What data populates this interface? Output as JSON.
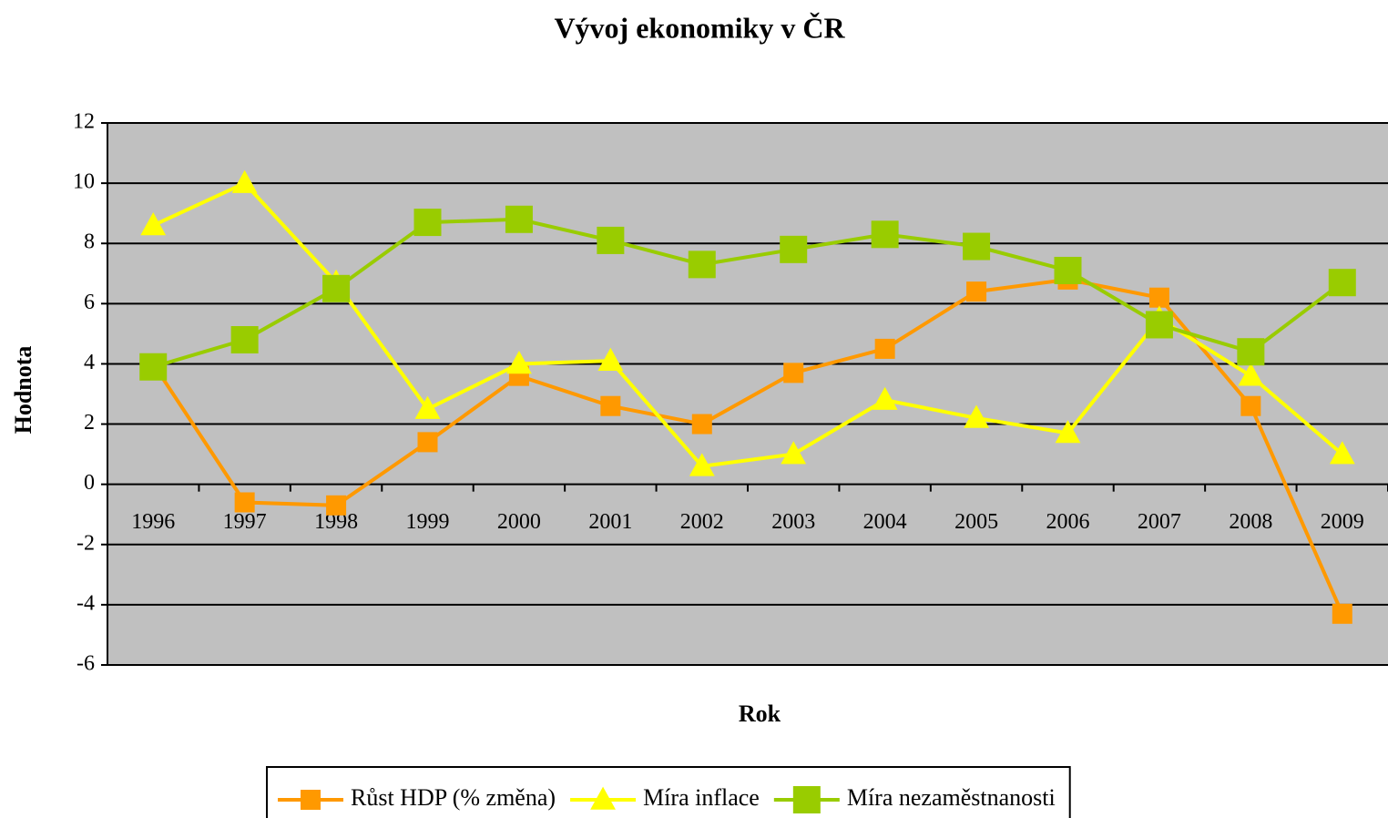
{
  "chart_data": {
    "type": "line",
    "title": "Vývoj ekonomiky v ČR",
    "xlabel": "Rok",
    "ylabel": "Hodnota",
    "categories": [
      "1996",
      "1997",
      "1998",
      "1999",
      "2000",
      "2001",
      "2002",
      "2003",
      "2004",
      "2005",
      "2006",
      "2007",
      "2008",
      "2009"
    ],
    "series": [
      {
        "name": "Růst HDP (% změna)",
        "color": "#ff9900",
        "marker": "square",
        "values": [
          4.0,
          -0.6,
          -0.7,
          1.4,
          3.6,
          2.6,
          2.0,
          3.7,
          4.5,
          6.4,
          6.8,
          6.2,
          2.6,
          -4.3
        ]
      },
      {
        "name": "Míra inflace",
        "color": "#ffff00",
        "marker": "triangle",
        "values": [
          8.6,
          10.0,
          6.7,
          2.5,
          4.0,
          4.1,
          0.6,
          1.0,
          2.8,
          2.2,
          1.7,
          5.5,
          3.6,
          1.0
        ]
      },
      {
        "name": "Míra nezaměstnanosti",
        "color": "#99cc00",
        "marker": "square",
        "values": [
          3.9,
          4.8,
          6.5,
          8.7,
          8.8,
          8.1,
          7.3,
          7.8,
          8.3,
          7.9,
          7.1,
          5.3,
          4.4,
          6.7
        ]
      }
    ],
    "ylim": [
      -6,
      12
    ],
    "yticks": [
      -6,
      -4,
      -2,
      0,
      2,
      4,
      6,
      8,
      10,
      12
    ],
    "grid": true,
    "legend": "bottom",
    "background": "#c0c0c0"
  }
}
